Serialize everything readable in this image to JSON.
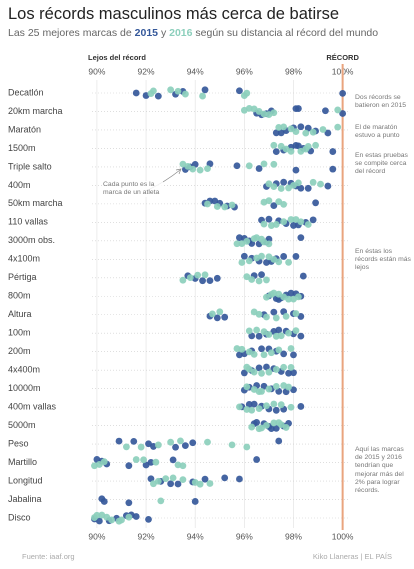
{
  "chart_data": {
    "type": "dot",
    "title": "Los récords masculinos más cerca de batirse",
    "subtitle": [
      "Las 25 mejores marcas de",
      "y",
      "según su distancia al récord del mundo"
    ],
    "source": "Fuente: iaaf.org",
    "credit": "Kiko Llaneras | EL PAÍS",
    "left_label": "Lejos del récord",
    "record_line": {
      "value": 100,
      "label": "RÉCORD",
      "color": "#e9a47e"
    },
    "xlim": [
      89.8,
      100.3
    ],
    "xticks": [
      {
        "value": 90,
        "label": "90%"
      },
      {
        "value": 92,
        "label": "92%"
      },
      {
        "value": 94,
        "label": "94%"
      },
      {
        "value": 96,
        "label": "96%"
      },
      {
        "value": 98,
        "label": "98%"
      },
      {
        "value": 100,
        "label": "100%"
      }
    ],
    "grid": true,
    "categories": [
      "Decatlón",
      "20km marcha",
      "Maratón",
      "1500m",
      "Triple salto",
      "400m",
      "50km marcha",
      "110 vallas",
      "3000m obs.",
      "4x100m",
      "Pértiga",
      "800m",
      "Altura",
      "100m",
      "200m",
      "4x400m",
      "10000m",
      "400m vallas",
      "5000m",
      "Peso",
      "Martillo",
      "Longitud",
      "Jabalina",
      "Disco"
    ],
    "series": [
      {
        "name": "2015",
        "color": "#35589a",
        "values": [
          [
            91.6,
            92.0,
            92.5,
            93.2,
            93.5,
            94.4,
            95.8,
            100.0
          ],
          [
            96.5,
            96.7,
            96.9,
            97.1,
            98.1,
            98.2,
            99.3,
            100.0
          ],
          [
            97.3,
            97.5,
            97.7,
            98.0,
            98.3,
            98.6,
            98.9,
            99.4
          ],
          [
            97.3,
            97.6,
            97.9,
            98.1,
            98.2,
            98.4,
            98.7,
            99.6
          ],
          [
            93.6,
            93.8,
            94.0,
            94.6,
            95.7,
            96.6,
            98.1,
            99.6
          ],
          [
            96.9,
            97.3,
            97.6,
            97.9,
            98.1,
            98.3,
            98.6,
            99.4
          ],
          [
            94.4,
            94.6,
            94.8,
            95.0,
            95.3,
            95.6,
            97.2,
            98.9
          ],
          [
            96.7,
            97.0,
            97.4,
            97.7,
            98.0,
            98.2,
            98.5,
            98.8
          ],
          [
            95.8,
            96.0,
            96.2,
            96.3,
            96.6,
            96.9,
            97.0,
            98.3
          ],
          [
            96.0,
            96.3,
            96.6,
            96.9,
            97.1,
            97.3,
            97.6,
            98.1
          ],
          [
            93.7,
            94.0,
            94.3,
            94.6,
            94.9,
            96.4,
            96.7,
            98.4
          ],
          [
            97.0,
            97.3,
            97.4,
            97.5,
            97.7,
            97.9,
            98.1,
            98.3
          ],
          [
            94.6,
            94.9,
            95.2,
            96.8,
            97.2,
            97.6,
            98.0,
            98.3
          ],
          [
            96.3,
            96.6,
            96.9,
            97.2,
            97.4,
            97.7,
            98.0,
            98.3
          ],
          [
            95.8,
            96.0,
            96.3,
            96.7,
            97.0,
            97.3,
            97.6,
            98.0
          ],
          [
            96.0,
            96.3,
            96.6,
            96.9,
            97.2,
            97.5,
            97.8,
            98.0
          ],
          [
            96.0,
            96.2,
            96.5,
            96.8,
            97.1,
            97.4,
            97.7,
            98.0
          ],
          [
            95.9,
            96.2,
            96.4,
            96.7,
            97.0,
            97.3,
            97.6,
            98.3
          ],
          [
            96.4,
            96.5,
            96.8,
            97.0,
            97.1,
            97.3,
            97.6,
            97.8
          ],
          [
            90.9,
            91.5,
            92.1,
            92.3,
            93.2,
            93.6,
            93.9,
            97.4
          ],
          [
            90.0,
            90.2,
            90.4,
            91.3,
            92.0,
            92.2,
            93.1,
            96.5
          ],
          [
            92.2,
            92.6,
            93.0,
            93.3,
            93.9,
            94.4,
            95.2,
            95.8
          ],
          [
            90.2,
            90.3,
            91.3,
            94.0
          ],
          [
            89.9,
            90.1,
            90.5,
            90.8,
            91.2,
            91.4,
            91.6,
            92.1
          ]
        ]
      },
      {
        "name": "2016",
        "color": "#8ccfbc",
        "values": [
          [
            92.2,
            92.3,
            93.0,
            93.3,
            93.6,
            94.3,
            96.0,
            96.1
          ],
          [
            96.0,
            96.2,
            96.4,
            96.6,
            96.8,
            97.0,
            97.2,
            99.8
          ],
          [
            97.4,
            97.6,
            97.9,
            98.1,
            98.5,
            98.8,
            99.2,
            99.8
          ],
          [
            97.2,
            97.5,
            97.7,
            97.9,
            98.3,
            98.5,
            98.6,
            98.9
          ],
          [
            93.5,
            93.7,
            93.9,
            94.2,
            94.5,
            96.2,
            96.8,
            97.2
          ],
          [
            97.0,
            97.2,
            97.5,
            97.8,
            98.0,
            98.2,
            98.8,
            99.1
          ],
          [
            94.5,
            94.9,
            95.2,
            95.5,
            96.8,
            97.0,
            97.4,
            97.6
          ],
          [
            96.8,
            97.1,
            97.3,
            97.6,
            97.9,
            98.1,
            98.3,
            98.6
          ],
          [
            95.7,
            95.9,
            96.1,
            96.4,
            96.5,
            96.7,
            96.8,
            97.0
          ],
          [
            95.9,
            96.2,
            96.5,
            96.7,
            97.0,
            97.2,
            97.4,
            97.8
          ],
          [
            93.5,
            93.8,
            94.1,
            94.4,
            96.1,
            96.3,
            96.6,
            96.9
          ],
          [
            96.9,
            97.1,
            97.2,
            97.4,
            97.6,
            97.8,
            98.0,
            98.2
          ],
          [
            94.7,
            95.0,
            96.4,
            96.6,
            96.9,
            97.3,
            97.7,
            98.1
          ],
          [
            96.2,
            96.5,
            96.8,
            97.0,
            97.3,
            97.5,
            97.8,
            98.1
          ],
          [
            95.7,
            95.9,
            96.2,
            96.4,
            96.8,
            97.1,
            97.4,
            97.9
          ],
          [
            96.1,
            96.2,
            96.4,
            96.7,
            97.0,
            97.3,
            97.6,
            97.9
          ],
          [
            96.1,
            96.4,
            96.6,
            96.7,
            97.0,
            97.3,
            97.6,
            97.8
          ],
          [
            95.8,
            96.1,
            96.3,
            96.6,
            96.9,
            97.2,
            97.5,
            97.9
          ],
          [
            96.3,
            96.6,
            96.7,
            96.9,
            97.2,
            97.4,
            97.5,
            97.7
          ],
          [
            91.2,
            91.8,
            92.5,
            93.0,
            93.4,
            94.5,
            95.5,
            96.1
          ],
          [
            89.9,
            90.1,
            90.3,
            91.6,
            91.9,
            92.4,
            93.3,
            93.5
          ],
          [
            92.3,
            92.5,
            92.8,
            93.1,
            93.5,
            94.0,
            94.2,
            94.6
          ],
          [
            92.6
          ],
          [
            89.9,
            90.0,
            90.2,
            90.4,
            90.6,
            90.9,
            91.0,
            91.3
          ]
        ]
      }
    ],
    "annotations": [
      "Dos récords se batieron en 2015",
      "El de maratón estuvo a punto",
      "En estas pruebas se compite cerca del récord",
      "En éstas los récords están más lejos",
      "Aquí las marcas de 2015 y 2016 tendrían que mejorar más del 2% para lograr récords.",
      "Cada punto es la marca de un atleta"
    ]
  }
}
